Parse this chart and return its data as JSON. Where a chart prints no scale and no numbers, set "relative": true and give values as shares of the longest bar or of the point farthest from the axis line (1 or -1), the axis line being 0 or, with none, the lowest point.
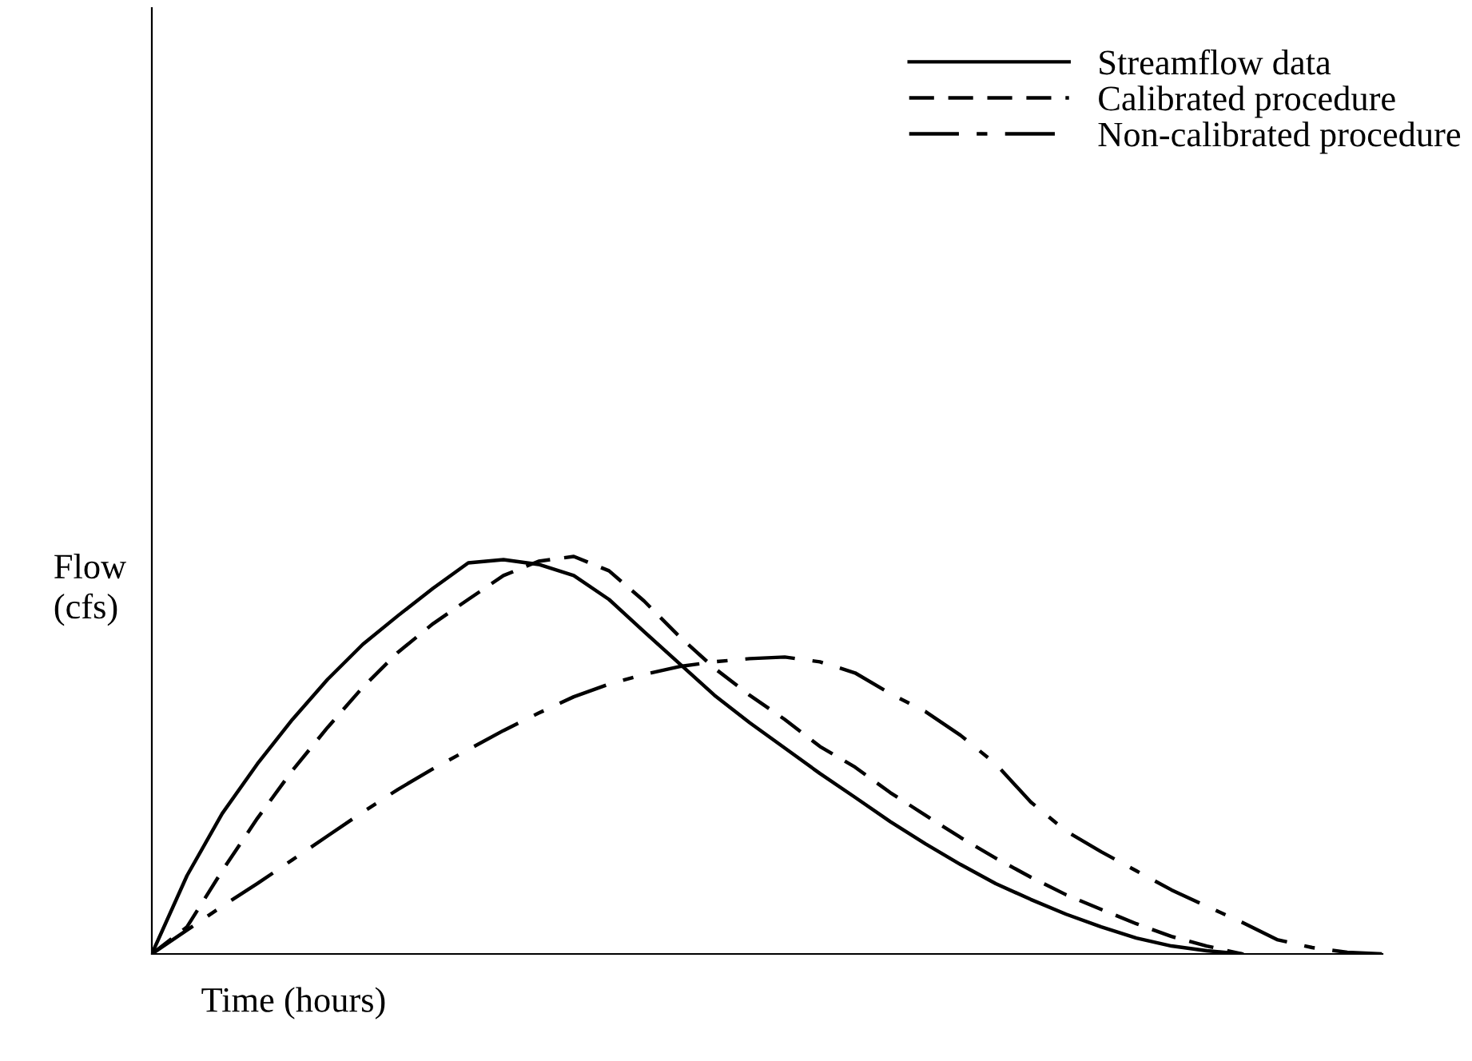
{
  "chart_data": {
    "type": "line",
    "relative": true,
    "xlabel": "Time (hours)",
    "ylabel": "Flow\n(cfs)",
    "categories": [
      null,
      null,
      null,
      null,
      null,
      null,
      null,
      null,
      null,
      null,
      null,
      null,
      null,
      null,
      null,
      null,
      null,
      null,
      null,
      null,
      null,
      null,
      null,
      null,
      null,
      null,
      null,
      null,
      null,
      null,
      null,
      null,
      null,
      null,
      null,
      null
    ],
    "series": [
      {
        "name": "Streamflow data",
        "color": "#000000",
        "line_style": "solid",
        "values": [
          0,
          0.197,
          0.353,
          0.478,
          0.59,
          0.691,
          0.779,
          0.851,
          0.92,
          0.984,
          0.992,
          0.98,
          0.952,
          0.892,
          0.811,
          0.731,
          0.651,
          0.582,
          0.518,
          0.454,
          0.394,
          0.333,
          0.277,
          0.225,
          0.177,
          0.137,
          0.1,
          0.068,
          0.04,
          0.02,
          0.008,
          0,
          null,
          null,
          null,
          null
        ]
      },
      {
        "name": "Calibrated procedure",
        "color": "#000000",
        "line_style": "dashed",
        "values": [
          0,
          0.068,
          0.209,
          0.341,
          0.462,
          0.57,
          0.671,
          0.759,
          0.831,
          0.892,
          0.952,
          0.988,
          1.0,
          0.964,
          0.888,
          0.799,
          0.719,
          0.651,
          0.59,
          0.522,
          0.47,
          0.406,
          0.349,
          0.293,
          0.241,
          0.193,
          0.149,
          0.112,
          0.076,
          0.044,
          0.02,
          0,
          null,
          null,
          null,
          null
        ]
      },
      {
        "name": "Non-calibrated procedure",
        "color": "#000000",
        "line_style": "dashdot",
        "values": [
          0,
          0.06,
          0.12,
          0.177,
          0.237,
          0.297,
          0.357,
          0.414,
          0.466,
          0.514,
          0.562,
          0.606,
          0.647,
          0.679,
          0.703,
          0.723,
          0.735,
          0.743,
          0.747,
          0.735,
          0.707,
          0.655,
          0.61,
          0.55,
          0.478,
          0.382,
          0.309,
          0.257,
          0.209,
          0.161,
          0.12,
          0.08,
          0.036,
          0.016,
          0.004,
          0
        ]
      }
    ],
    "legend": "top right",
    "tick_labels": false
  }
}
